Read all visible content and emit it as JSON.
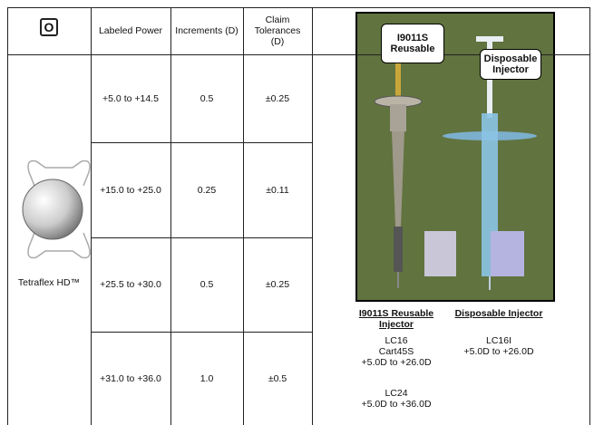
{
  "header": {
    "icon_label": "O",
    "columns": [
      "Labeled Power",
      "Increments (D)",
      "Claim Tolerances (D)"
    ]
  },
  "lens": {
    "name": "Tetraflex HD™"
  },
  "table": {
    "rows": [
      [
        "+5.0 to +14.5",
        "0.5",
        "±0.25"
      ],
      [
        "+15.0 to +25.0",
        "0.25",
        "±0.11"
      ],
      [
        "+25.5 to +30.0",
        "0.5",
        "±0.25"
      ],
      [
        "+31.0 to +36.0",
        "1.0",
        "±0.5"
      ]
    ]
  },
  "photo": {
    "labels": [
      "I9011S Reusable",
      "Disposable Injector"
    ]
  },
  "injectors": [
    {
      "title": "I9011S Reusable Injector",
      "groups": [
        [
          "LC16",
          "Cart45S",
          "+5.0D to +26.0D"
        ],
        [
          "LC24",
          "+5.0D to +36.0D"
        ]
      ]
    },
    {
      "title": "Disposable Injector",
      "groups": [
        [
          "LC16I",
          "+5.0D to +26.0D"
        ]
      ]
    }
  ]
}
